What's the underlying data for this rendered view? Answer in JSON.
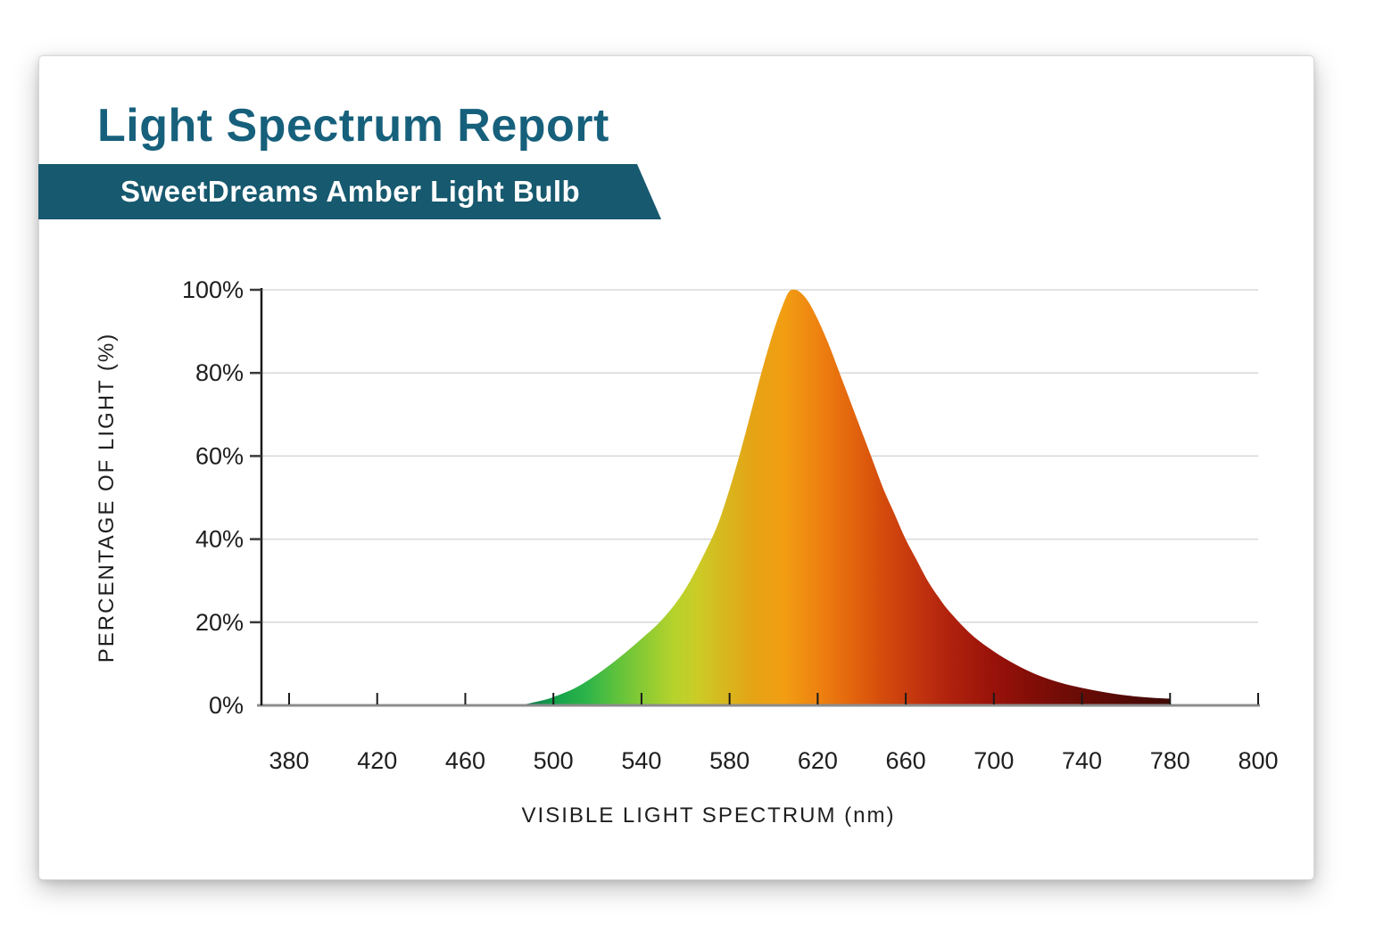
{
  "header": {
    "title": "Light Spectrum Report",
    "banner": {
      "label": "SweetDreams Amber Light Bulb"
    }
  },
  "colors": {
    "title_text": "#16607C",
    "banner_bg": "#17596F",
    "banner_text": "#FFFFFF",
    "axis_text": "#1E1E1E",
    "y_axis_line": "#1A1A1A",
    "x_baseline": "#8C8C8C",
    "gridline": "#D8D8D8",
    "page_bg": "#FFFFFF"
  },
  "chart_data": {
    "type": "area",
    "title": "Light Spectrum Report",
    "subtitle": "SweetDreams Amber Light Bulb",
    "xlabel": "VISIBLE LIGHT SPECTRUM (nm)",
    "ylabel": "PERCENTAGE OF LIGHT (%)",
    "x_tick_labels": [
      "380",
      "420",
      "460",
      "500",
      "540",
      "580",
      "620",
      "660",
      "700",
      "740",
      "780",
      "800"
    ],
    "y_tick_labels": [
      "100%",
      "80%",
      "60%",
      "40%",
      "20%",
      "0%"
    ],
    "y_tick_values": [
      100,
      80,
      60,
      40,
      20,
      0
    ],
    "xlim_nm": [
      380,
      800
    ],
    "ylim_pct": [
      0,
      100
    ],
    "grid": "horizontal-light-gray",
    "legend": "none",
    "note": "x tick labels are equally spaced; spectral fill spans ~485-780 nm, cut vertically at 780 nm; peak ~608 nm at 100%",
    "series": [
      {
        "name": "SweetDreams Amber Light Bulb spectral output",
        "points_nm_pct": [
          [
            485,
            0
          ],
          [
            490,
            0.6
          ],
          [
            495,
            1.2
          ],
          [
            500,
            2
          ],
          [
            510,
            4.2
          ],
          [
            520,
            7.5
          ],
          [
            530,
            11.5
          ],
          [
            540,
            16
          ],
          [
            550,
            21
          ],
          [
            560,
            28
          ],
          [
            570,
            38
          ],
          [
            575,
            44
          ],
          [
            580,
            52
          ],
          [
            585,
            61
          ],
          [
            590,
            71
          ],
          [
            595,
            81
          ],
          [
            600,
            90
          ],
          [
            604,
            96
          ],
          [
            607,
            99.5
          ],
          [
            610,
            100
          ],
          [
            613,
            99
          ],
          [
            616,
            97
          ],
          [
            620,
            93
          ],
          [
            625,
            87
          ],
          [
            630,
            80
          ],
          [
            635,
            73
          ],
          [
            640,
            66
          ],
          [
            645,
            59
          ],
          [
            650,
            52
          ],
          [
            655,
            46
          ],
          [
            660,
            40
          ],
          [
            665,
            35
          ],
          [
            670,
            30
          ],
          [
            675,
            26
          ],
          [
            680,
            22.5
          ],
          [
            690,
            17
          ],
          [
            700,
            13
          ],
          [
            710,
            9.8
          ],
          [
            720,
            7.3
          ],
          [
            730,
            5.5
          ],
          [
            740,
            4.2
          ],
          [
            750,
            3.2
          ],
          [
            760,
            2.4
          ],
          [
            770,
            1.9
          ],
          [
            780,
            1.6
          ]
        ]
      }
    ],
    "gradient_stops": [
      {
        "nm": 485,
        "color": "#1C6E52"
      },
      {
        "nm": 500,
        "color": "#12A04B"
      },
      {
        "nm": 515,
        "color": "#2DB44A"
      },
      {
        "nm": 530,
        "color": "#63C33B"
      },
      {
        "nm": 545,
        "color": "#97CD31"
      },
      {
        "nm": 555,
        "color": "#B6D22C"
      },
      {
        "nm": 565,
        "color": "#CBCC26"
      },
      {
        "nm": 575,
        "color": "#D4BC20"
      },
      {
        "nm": 590,
        "color": "#E5A415"
      },
      {
        "nm": 605,
        "color": "#F29D12"
      },
      {
        "nm": 620,
        "color": "#EE8310"
      },
      {
        "nm": 635,
        "color": "#E4660D"
      },
      {
        "nm": 650,
        "color": "#D44B0C"
      },
      {
        "nm": 665,
        "color": "#C3350E"
      },
      {
        "nm": 680,
        "color": "#B0220D"
      },
      {
        "nm": 700,
        "color": "#98120A"
      },
      {
        "nm": 720,
        "color": "#7F0D07"
      },
      {
        "nm": 745,
        "color": "#630B06"
      },
      {
        "nm": 780,
        "color": "#3E0A05"
      }
    ],
    "peak": {
      "nm": 608,
      "pct": 100
    }
  }
}
